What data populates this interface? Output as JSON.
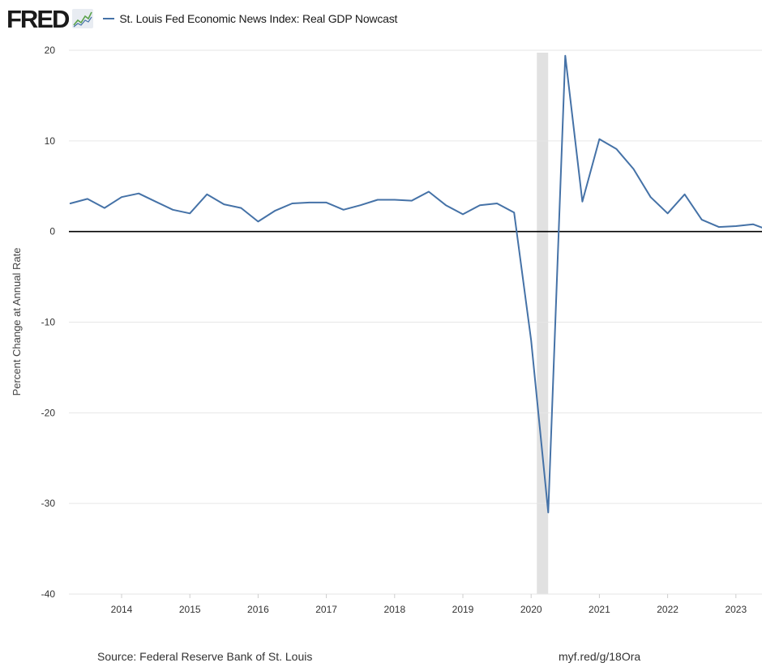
{
  "header": {
    "logo_text": "FRED",
    "logo_icon": "line-chart-icon",
    "legend_label": "St. Louis Fed Economic News Index: Real GDP Nowcast"
  },
  "footer": {
    "source": "Source: Federal Reserve Bank of St. Louis",
    "link": "myf.red/g/18Ora"
  },
  "chart_data": {
    "type": "line",
    "title": "",
    "ylabel": "Percent Change at Annual Rate",
    "xlabel": "",
    "ylim": [
      -40,
      20
    ],
    "yticks": [
      20,
      10,
      0,
      -10,
      -20,
      -30,
      -40
    ],
    "xticks": [
      "2014",
      "2015",
      "2016",
      "2017",
      "2018",
      "2019",
      "2020",
      "2021",
      "2022",
      "2023"
    ],
    "grid": true,
    "zero_line": true,
    "recession_shading": [
      {
        "start": "2020-02",
        "end": "2020-04"
      }
    ],
    "colors": {
      "line": "#4572a7",
      "recession": "#e1e1e1",
      "grid": "#e6e6e6",
      "zero": "#000000"
    },
    "series": [
      {
        "name": "St. Louis Fed Economic News Index: Real GDP Nowcast",
        "x": [
          "2013-04-01",
          "2013-07-01",
          "2013-10-01",
          "2014-01-01",
          "2014-04-01",
          "2014-07-01",
          "2014-10-01",
          "2015-01-01",
          "2015-04-01",
          "2015-07-01",
          "2015-10-01",
          "2016-01-01",
          "2016-04-01",
          "2016-07-01",
          "2016-10-01",
          "2017-01-01",
          "2017-04-01",
          "2017-07-01",
          "2017-10-01",
          "2018-01-01",
          "2018-04-01",
          "2018-07-01",
          "2018-10-01",
          "2019-01-01",
          "2019-04-01",
          "2019-07-01",
          "2019-10-01",
          "2020-01-01",
          "2020-04-01",
          "2020-07-01",
          "2020-10-01",
          "2021-01-01",
          "2021-04-01",
          "2021-07-01",
          "2021-10-01",
          "2022-01-01",
          "2022-04-01",
          "2022-07-01",
          "2022-10-01",
          "2023-01-01",
          "2023-04-01",
          "2023-07-01"
        ],
        "values": [
          3.1,
          3.6,
          2.6,
          3.8,
          4.2,
          3.3,
          2.4,
          2.0,
          4.1,
          3.0,
          2.6,
          1.1,
          2.3,
          3.1,
          3.2,
          3.2,
          2.4,
          2.9,
          3.5,
          3.5,
          3.4,
          4.4,
          2.9,
          1.9,
          2.9,
          3.1,
          2.1,
          -12.0,
          -31.0,
          19.4,
          3.3,
          10.2,
          9.1,
          6.9,
          3.8,
          2.0,
          4.1,
          1.3,
          0.5,
          0.6,
          0.8,
          0.1
        ]
      }
    ]
  }
}
